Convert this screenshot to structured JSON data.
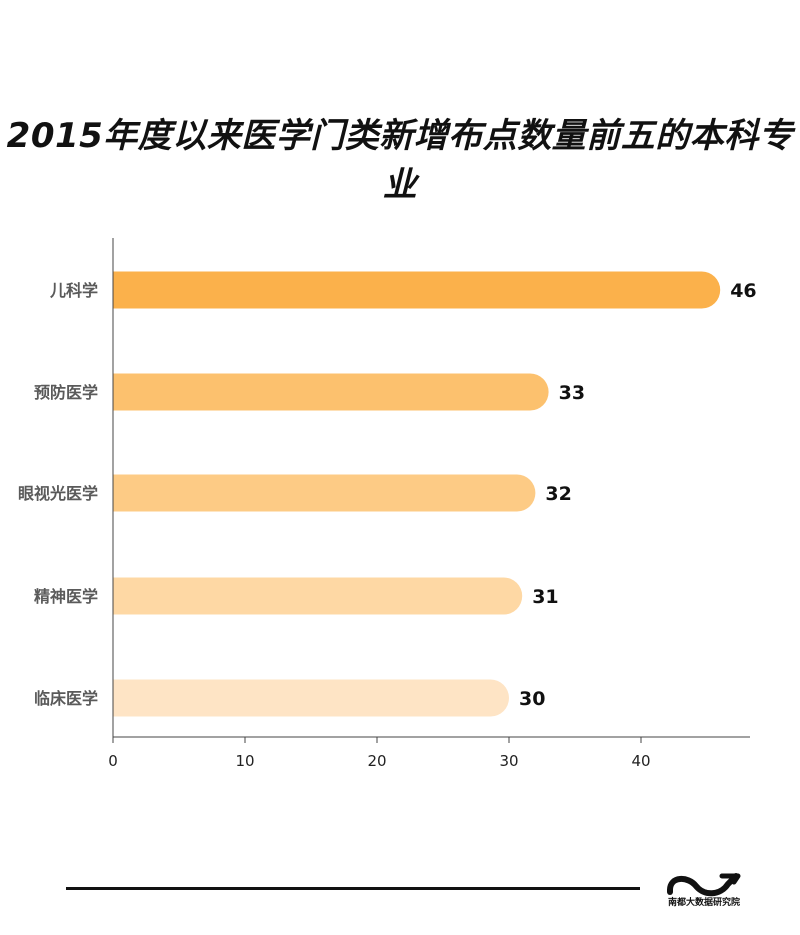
{
  "chart_data": {
    "type": "bar",
    "orientation": "horizontal",
    "title": "2015年度以来医学门类新增布点数量前五的本科专业",
    "categories": [
      "儿科学",
      "预防医学",
      "眼视光医学",
      "精神医学",
      "临床医学"
    ],
    "values": [
      46,
      33,
      32,
      31,
      30
    ],
    "xlabel": "",
    "ylabel": "",
    "xlim": [
      0,
      48
    ],
    "xticks": [
      0,
      10,
      20,
      30,
      40
    ],
    "grid": false,
    "colors": [
      "#fbb14b",
      "#fcc16e",
      "#fdcb85",
      "#fed8a4",
      "#fee4c5"
    ]
  },
  "footer": {
    "org_name": "南都大数据研究院"
  }
}
